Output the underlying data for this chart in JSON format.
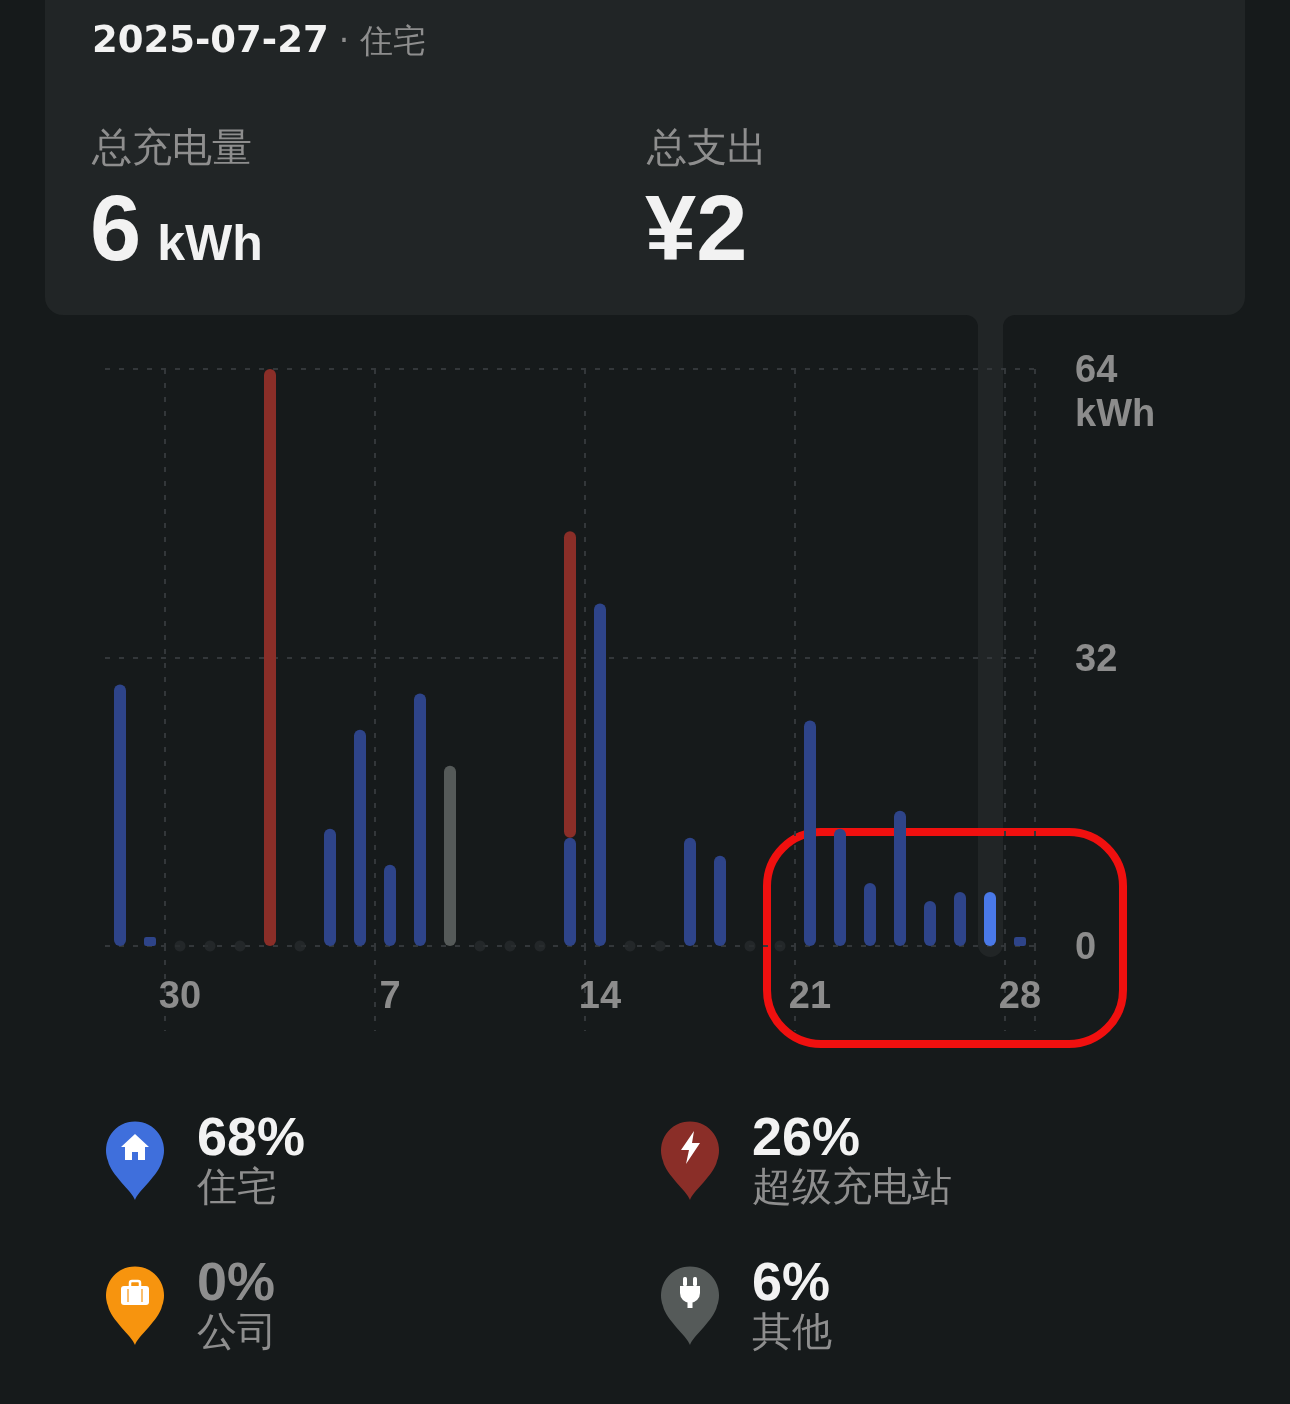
{
  "chart_data": {
    "type": "bar",
    "stacked": true,
    "grid": true,
    "legend": "bottom",
    "ylabel": "kWh",
    "ylim": [
      0,
      64
    ],
    "yticks": [
      0,
      32,
      64
    ],
    "categories": [
      null,
      null,
      "30",
      null,
      null,
      null,
      null,
      null,
      null,
      "7",
      null,
      null,
      null,
      null,
      null,
      null,
      "14",
      null,
      null,
      null,
      null,
      null,
      null,
      "21",
      null,
      null,
      null,
      null,
      null,
      null,
      "28"
    ],
    "series": [
      {
        "name": "住宅",
        "color": "#3f6fdc",
        "values": [
          29,
          1,
          null,
          null,
          null,
          null,
          null,
          13,
          24,
          9,
          28,
          null,
          null,
          null,
          null,
          12,
          38,
          null,
          null,
          12,
          10,
          null,
          null,
          25,
          13,
          7,
          15,
          5,
          6,
          6,
          1
        ],
        "colors": [
          "#2e4489",
          "#2e4489",
          null,
          null,
          null,
          null,
          null,
          "#2e4489",
          "#2e4489",
          "#2e4489",
          "#2e4489",
          null,
          null,
          null,
          null,
          "#2e4489",
          "#2e4489",
          null,
          null,
          "#2e4489",
          "#2e4489",
          null,
          null,
          "#2e4489",
          "#2e4489",
          "#2e4489",
          "#2e4489",
          "#2e4489",
          "#2e4489",
          "#4a79e8",
          "#2e4489"
        ]
      },
      {
        "name": "超级充电站",
        "color": "#8a2e28",
        "values": [
          null,
          null,
          null,
          null,
          null,
          64,
          null,
          null,
          null,
          null,
          null,
          null,
          null,
          null,
          null,
          34,
          null,
          null,
          null,
          null,
          null,
          null,
          null,
          null,
          null,
          null,
          null,
          null,
          null,
          null,
          null
        ]
      },
      {
        "name": "公司",
        "color": "#f7940e",
        "values": [
          null,
          null,
          null,
          null,
          null,
          null,
          null,
          null,
          null,
          null,
          null,
          null,
          null,
          null,
          null,
          null,
          null,
          null,
          null,
          null,
          null,
          null,
          null,
          null,
          null,
          null,
          null,
          null,
          null,
          null,
          null
        ]
      },
      {
        "name": "其他",
        "color": "#555a59",
        "values": [
          null,
          null,
          null,
          null,
          null,
          null,
          null,
          null,
          null,
          null,
          null,
          20,
          null,
          null,
          null,
          null,
          null,
          null,
          null,
          null,
          null,
          null,
          null,
          null,
          null,
          null,
          null,
          null,
          null,
          null,
          null
        ]
      },
      {
        "type": "scatter",
        "marker": "circle",
        "color": "#272b2d",
        "values": [
          null,
          null,
          0,
          0,
          0,
          null,
          0,
          null,
          null,
          null,
          null,
          null,
          0,
          0,
          0,
          null,
          null,
          0,
          0,
          null,
          null,
          0,
          0,
          null,
          null,
          null,
          null,
          null,
          null,
          null,
          null
        ]
      }
    ],
    "annotations": [
      "2025-07-27",
      "· 住宅",
      "总充电量",
      "6",
      "kWh",
      "总支出",
      "¥2",
      "68%",
      "26%",
      "0%",
      "6%"
    ]
  }
}
